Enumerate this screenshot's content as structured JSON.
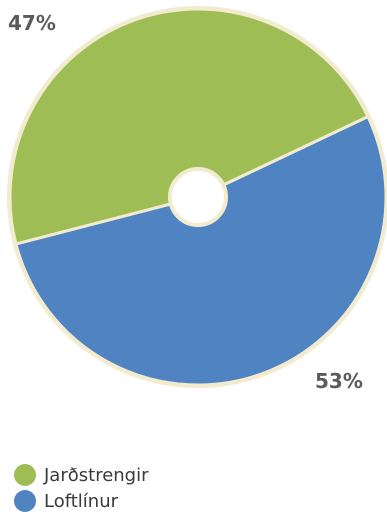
{
  "chart_data": {
    "type": "pie",
    "title": "",
    "donut": true,
    "legend_position": "bottom-left",
    "slices": [
      {
        "name": "Jarðstrengir",
        "value": 47,
        "label": "47%",
        "color": "#9ebd54"
      },
      {
        "name": "Loftlínur",
        "value": 53,
        "label": "53%",
        "color": "#4f83c2"
      }
    ],
    "ring_color": "#f2ebcf"
  }
}
